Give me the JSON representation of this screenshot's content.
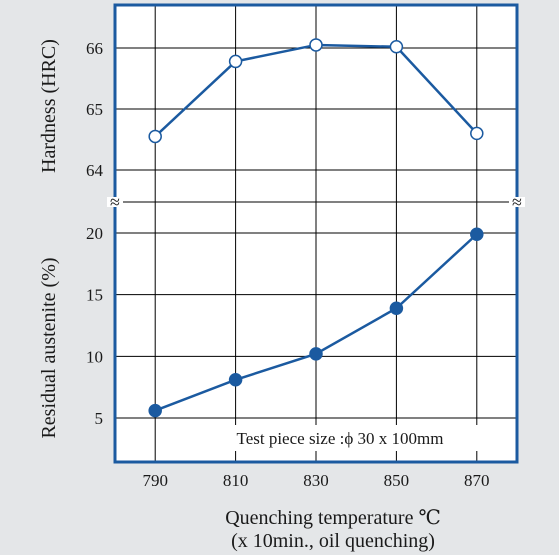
{
  "chart_data": [
    {
      "type": "line",
      "panel": "upper",
      "ylabel": "Hardness (HRC)",
      "yticks": [
        64,
        65,
        66
      ],
      "ylim": [
        64,
        66.6
      ],
      "x": [
        790,
        810,
        830,
        850,
        870
      ],
      "series": [
        {
          "values": [
            64.55,
            65.78,
            66.05,
            66.02,
            64.6
          ],
          "marker": "open-circle"
        }
      ]
    },
    {
      "type": "line",
      "panel": "lower",
      "ylabel": "Residual austenite (%)",
      "yticks": [
        5,
        10,
        15,
        20
      ],
      "ylim": [
        2.8,
        23
      ],
      "x": [
        790,
        810,
        830,
        850,
        870
      ],
      "series": [
        {
          "values": [
            5.6,
            8.1,
            10.2,
            13.9,
            19.9
          ],
          "marker": "filled-circle"
        }
      ]
    }
  ],
  "xaxis": {
    "ticks": [
      790,
      810,
      830,
      850,
      870
    ],
    "xlim": [
      780,
      880
    ],
    "label_line1": "Quenching temperature ℃",
    "label_line2": "(x 10min., oil quenching)"
  },
  "annotation": "Test piece size :ϕ 30 x 100mm",
  "break_symbol": "≈",
  "colors": {
    "background": "#e4e6e8",
    "plot_bg": "#ffffff",
    "frame": "#1b5aa0",
    "series": "#1b5aa0",
    "grid": "#000000"
  }
}
